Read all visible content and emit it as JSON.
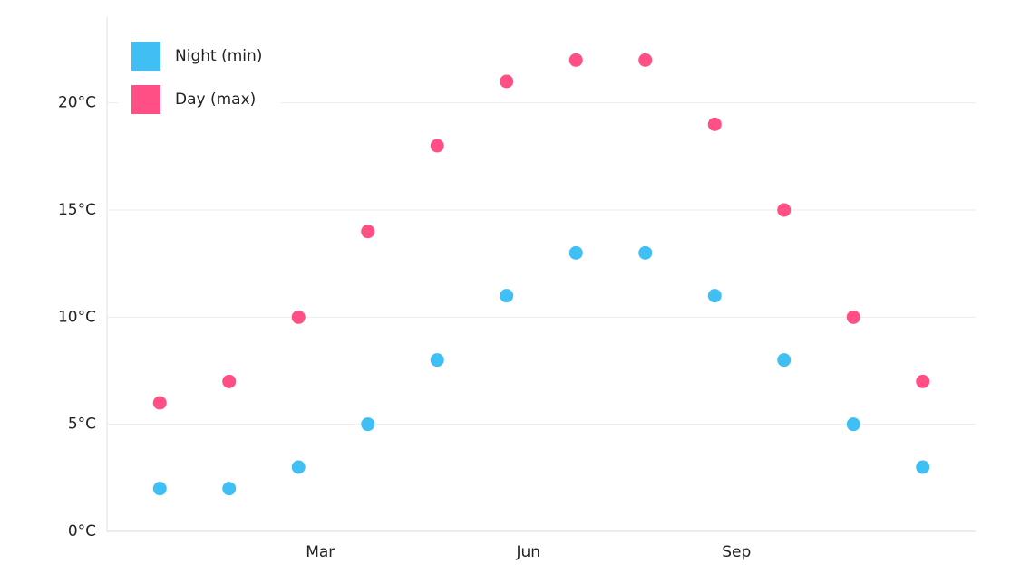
{
  "chart_data": {
    "type": "scatter",
    "categories": [
      null,
      null,
      "Mar",
      null,
      null,
      "Jun",
      null,
      null,
      "Sep",
      null,
      null,
      null
    ],
    "series": [
      {
        "name": "Night (min)",
        "color": "#40bff5",
        "values": [
          2,
          2,
          3,
          5,
          8,
          11,
          13,
          13,
          11,
          8,
          5,
          3
        ]
      },
      {
        "name": "Day (max)",
        "color": "#ff4f85",
        "values": [
          6,
          7,
          10,
          14,
          18,
          21,
          22,
          22,
          19,
          15,
          10,
          7
        ]
      }
    ],
    "ylim": [
      0,
      24
    ],
    "yticks": [
      {
        "value": 0,
        "label": "0°C"
      },
      {
        "value": 5,
        "label": "5°C"
      },
      {
        "value": 10,
        "label": "10°C"
      },
      {
        "value": 15,
        "label": "15°C"
      },
      {
        "value": 20,
        "label": "20°C"
      }
    ],
    "grid": true,
    "legend": "top-left"
  }
}
